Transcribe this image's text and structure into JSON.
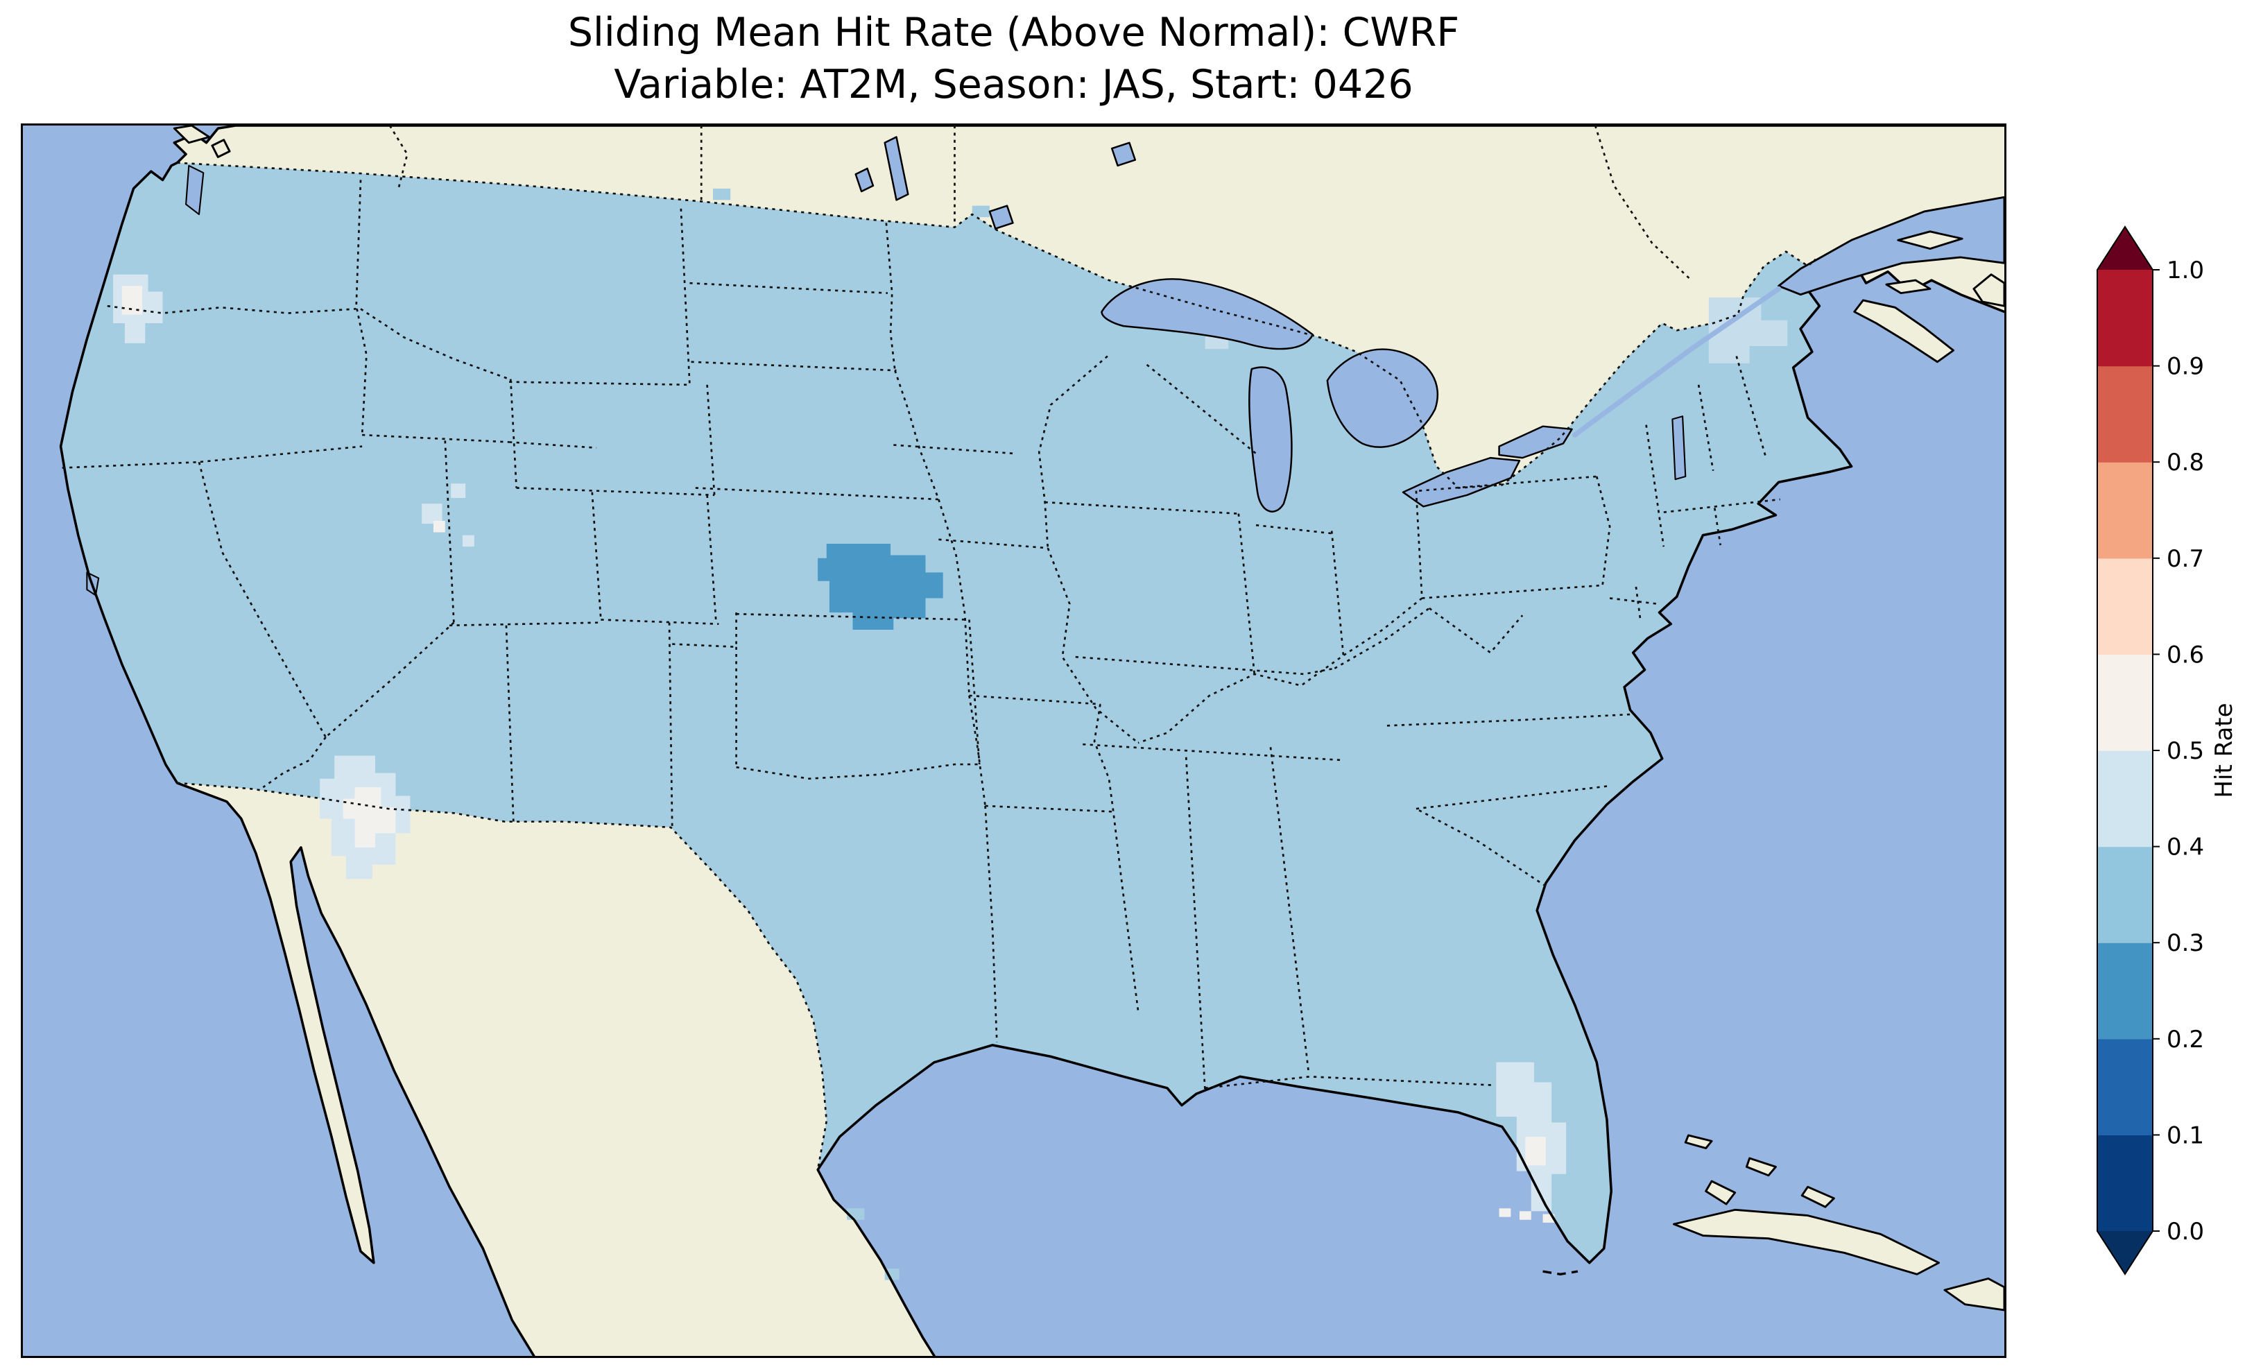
{
  "figure": {
    "title_line1": "Sliding Mean Hit Rate (Above Normal): CWRF",
    "title_line2": "Variable: AT2M, Season: JAS, Start: 0426"
  },
  "colorbar": {
    "label": "Hit Rate",
    "tick_labels_bottom_to_top": [
      "0.0",
      "0.1",
      "0.2",
      "0.3",
      "0.4",
      "0.5",
      "0.6",
      "0.7",
      "0.8",
      "0.9",
      "1.0"
    ],
    "cell_colors_bottom_to_top": [
      "#083d7f",
      "#2166ac",
      "#4393c3",
      "#92c5de",
      "#d1e5f0",
      "#f7f1ec",
      "#fddbc7",
      "#f4a582",
      "#d6604d",
      "#b2182b"
    ],
    "under_arrow_color": "#053061",
    "over_arrow_color": "#67001f"
  },
  "map_colors": {
    "ocean": "#98b6e2",
    "land": "#efefdb",
    "us_fill": "#a5cde2",
    "patch_pale": "#d5e6f1",
    "patch_white": "#f3f1ed",
    "patch_dark": "#4a98c6",
    "patch_subtle": "#c6ddec"
  },
  "chart_data": {
    "type": "heatmap",
    "title": "Sliding Mean Hit Rate (Above Normal): CWRF",
    "subtitle": "Variable: AT2M, Season: JAS, Start: 0426",
    "model": "CWRF",
    "variable": "AT2M",
    "season": "JAS",
    "start": "0426",
    "colorbar_label": "Hit Rate",
    "colorbar_ticks": [
      0.0,
      0.1,
      0.2,
      0.3,
      0.4,
      0.5,
      0.6,
      0.7,
      0.8,
      0.9,
      1.0
    ],
    "colormap": "RdBu_r discrete, 10 bins, extend arrows both ends",
    "map_extent": "Continental United States with surrounding Canada, Mexico, Gulf of Mexico and Atlantic",
    "legend_position": "right vertical colorbar",
    "values_by_region": [
      {
        "region": "Most of CONUS (dominant field value)",
        "hit_rate_bin": "0.3-0.4"
      },
      {
        "region": "Central Nebraska patch",
        "hit_rate_bin": "0.2-0.3"
      },
      {
        "region": "Central Arizona blob",
        "hit_rate_bin": "0.4-0.5"
      },
      {
        "region": "Arizona blob core",
        "hit_rate_bin": "0.5-0.6"
      },
      {
        "region": "Scattered Utah cells",
        "hit_rate_bin": "0.4-0.6"
      },
      {
        "region": "Western Washington coast",
        "hit_rate_bin": "0.4-0.6"
      },
      {
        "region": "Florida peninsula",
        "hit_rate_bin": "0.4-0.5"
      },
      {
        "region": "South Florida cells",
        "hit_rate_bin": "0.5-0.6"
      },
      {
        "region": "Northern Maine / Upper Michigan",
        "hit_rate_bin": "0.35-0.45"
      }
    ]
  }
}
